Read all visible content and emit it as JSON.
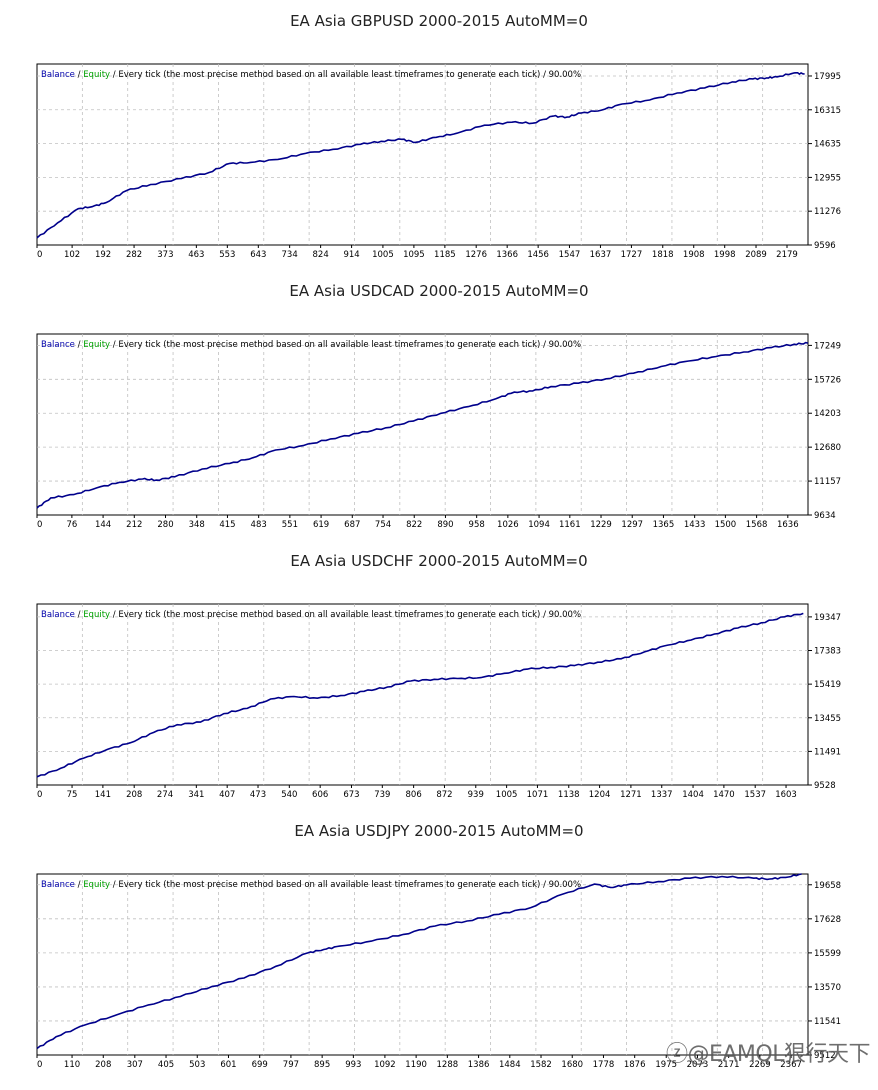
{
  "chart_data": [
    {
      "type": "line",
      "title": "EA Asia GBPUSD 2000-2015 AutoMM=0",
      "legend": {
        "balance": "Balance",
        "equity": "Equity",
        "desc": " / Every tick (the most precise method based on all available least timeframes to generate each tick) / 90.00%"
      },
      "x_ticks": [
        0,
        102,
        192,
        282,
        373,
        463,
        553,
        643,
        734,
        824,
        914,
        1005,
        1095,
        1185,
        1276,
        1366,
        1456,
        1547,
        1637,
        1727,
        1818,
        1908,
        1998,
        2089,
        2179
      ],
      "y_ticks": [
        9596,
        11276,
        12955,
        14635,
        16315,
        17995
      ],
      "xlim": [
        0,
        2240
      ],
      "ylim": [
        9596,
        18590
      ],
      "series": [
        {
          "values_x": [
            0,
            60,
            120,
            160,
            200,
            260,
            330,
            420,
            500,
            560,
            620,
            700,
            780,
            860,
            940,
            1000,
            1060,
            1100,
            1160,
            1220,
            1300,
            1380,
            1440,
            1500,
            1540,
            1580,
            1640,
            1700,
            1780,
            1860,
            1940,
            2020,
            2080,
            2120,
            2150,
            2200,
            2230
          ],
          "values_y": [
            9950,
            10700,
            11400,
            11500,
            11700,
            12300,
            12600,
            12900,
            13200,
            13650,
            13700,
            13850,
            14150,
            14350,
            14600,
            14750,
            14850,
            14700,
            14950,
            15150,
            15550,
            15700,
            15650,
            16000,
            15950,
            16150,
            16300,
            16600,
            16800,
            17150,
            17400,
            17700,
            17850,
            17900,
            17950,
            18150,
            18100
          ]
        }
      ]
    },
    {
      "type": "line",
      "title": "EA Asia USDCAD 2000-2015 AutoMM=0",
      "legend": {
        "balance": "Balance",
        "equity": "Equity",
        "desc": " / Every tick (the most precise method based on all available least timeframes to generate each tick) / 90.00%"
      },
      "x_ticks": [
        0,
        76,
        144,
        212,
        280,
        348,
        415,
        483,
        551,
        619,
        687,
        754,
        822,
        890,
        958,
        1026,
        1094,
        1161,
        1229,
        1297,
        1365,
        1433,
        1500,
        1568,
        1636
      ],
      "y_ticks": [
        9634,
        11157,
        12680,
        14203,
        15726,
        17249
      ],
      "xlim": [
        0,
        1680
      ],
      "ylim": [
        9634,
        17760
      ],
      "series": [
        {
          "values_x": [
            0,
            30,
            80,
            130,
            180,
            230,
            260,
            300,
            360,
            420,
            470,
            520,
            580,
            640,
            700,
            760,
            820,
            880,
            940,
            1000,
            1040,
            1080,
            1120,
            1180,
            1240,
            1300,
            1360,
            1420,
            1480,
            1540,
            1600,
            1650,
            1680
          ],
          "values_y": [
            9950,
            10400,
            10550,
            10850,
            11100,
            11250,
            11200,
            11350,
            11700,
            11950,
            12200,
            12550,
            12750,
            13050,
            13300,
            13550,
            13850,
            14200,
            14500,
            14850,
            15150,
            15200,
            15400,
            15550,
            15750,
            16000,
            16300,
            16550,
            16750,
            16950,
            17150,
            17300,
            17350
          ]
        }
      ]
    },
    {
      "type": "line",
      "title": "EA Asia USDCHF 2000-2015 AutoMM=0",
      "legend": {
        "balance": "Balance",
        "equity": "Equity",
        "desc": " / Every tick (the most precise method based on all available least timeframes to generate each tick) / 90.00%"
      },
      "x_ticks": [
        0,
        75,
        141,
        208,
        274,
        341,
        407,
        473,
        540,
        606,
        673,
        739,
        806,
        872,
        939,
        1005,
        1071,
        1138,
        1204,
        1271,
        1337,
        1404,
        1470,
        1537,
        1603
      ],
      "y_ticks": [
        9528,
        11491,
        13455,
        15419,
        17383,
        19347
      ],
      "xlim": [
        0,
        1650
      ],
      "ylim": [
        9528,
        20100
      ],
      "series": [
        {
          "values_x": [
            0,
            50,
            100,
            150,
            200,
            250,
            300,
            350,
            400,
            450,
            500,
            550,
            600,
            650,
            700,
            750,
            800,
            850,
            900,
            950,
            1000,
            1050,
            1100,
            1150,
            1200,
            1250,
            1300,
            1350,
            1400,
            1450,
            1500,
            1550,
            1600,
            1640
          ],
          "values_y": [
            10000,
            10500,
            11100,
            11600,
            12000,
            12600,
            13050,
            13200,
            13700,
            14000,
            14550,
            14700,
            14600,
            14750,
            15000,
            15250,
            15600,
            15700,
            15750,
            15800,
            16050,
            16300,
            16400,
            16500,
            16700,
            16900,
            17300,
            17700,
            18000,
            18350,
            18700,
            19000,
            19350,
            19550
          ]
        }
      ]
    },
    {
      "type": "line",
      "title": "EA Asia USDJPY 2000-2015 AutoMM=0",
      "legend": {
        "balance": "Balance",
        "equity": "Equity",
        "desc": " / Every tick (the most precise method based on all available least timeframes to generate each tick) / 90.00%"
      },
      "x_ticks": [
        0,
        110,
        208,
        307,
        405,
        503,
        601,
        699,
        797,
        895,
        993,
        1092,
        1190,
        1288,
        1386,
        1484,
        1582,
        1680,
        1778,
        1876,
        1975,
        2073,
        2171,
        2269,
        2367
      ],
      "y_ticks": [
        9512,
        11541,
        13570,
        15599,
        17628,
        19658
      ],
      "xlim": [
        0,
        2420
      ],
      "ylim": [
        9512,
        20300
      ],
      "series": [
        {
          "values_x": [
            0,
            60,
            150,
            250,
            350,
            450,
            550,
            650,
            750,
            850,
            900,
            950,
            1050,
            1150,
            1250,
            1350,
            1450,
            1550,
            1650,
            1750,
            1800,
            1850,
            1950,
            2050,
            2150,
            2250,
            2300,
            2350,
            2400
          ],
          "values_y": [
            9900,
            10600,
            11300,
            11900,
            12500,
            13000,
            13600,
            14100,
            14800,
            15600,
            15800,
            16000,
            16300,
            16700,
            17200,
            17500,
            17900,
            18300,
            19100,
            19700,
            19500,
            19650,
            19850,
            20050,
            20150,
            20050,
            20000,
            20100,
            20300
          ]
        }
      ]
    }
  ],
  "watermark": "ⓩ@EAMQL狠行天下",
  "colors": {
    "balance": "#0000aa",
    "equity": "#00a000",
    "line": "#00008b",
    "grid": "#c0c0c0"
  }
}
